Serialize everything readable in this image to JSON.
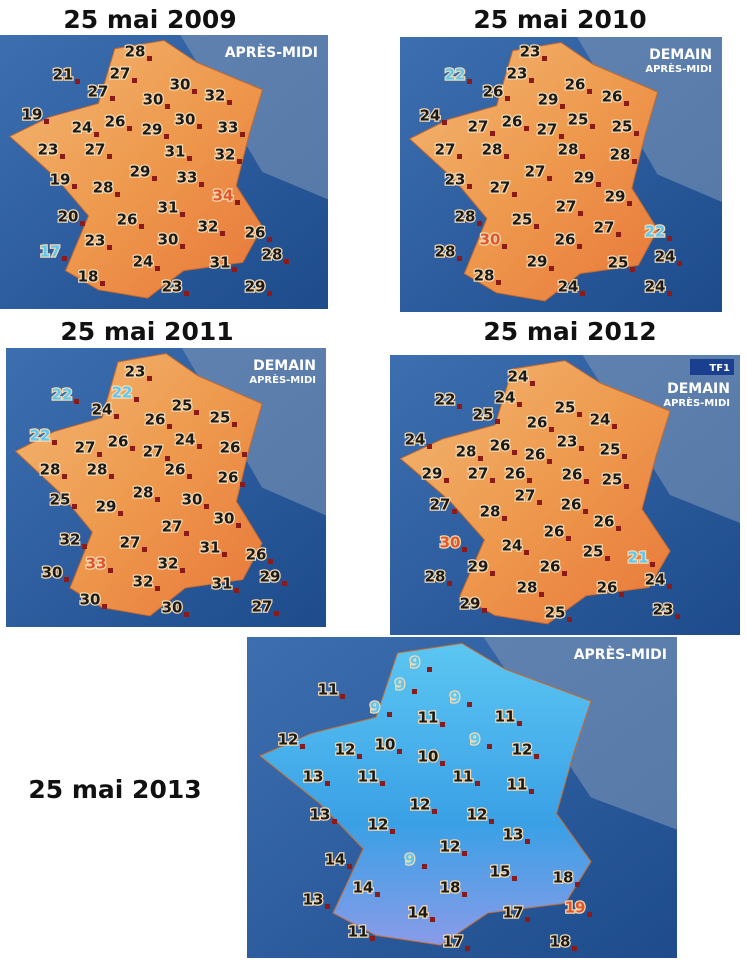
{
  "panels": [
    {
      "title": "25 mai 2009",
      "banner": [
        "APRÈS-MIDI"
      ],
      "temperatures": [
        28,
        21,
        27,
        27,
        30,
        32,
        30,
        19,
        24,
        26,
        29,
        30,
        33,
        23,
        27,
        31,
        32,
        29,
        33,
        19,
        28,
        34,
        31,
        20,
        26,
        32,
        26,
        17,
        23,
        30,
        28,
        18,
        24,
        31,
        23,
        29
      ]
    },
    {
      "title": "25 mai 2010",
      "banner": [
        "DEMAIN",
        "APRÈS-MIDI"
      ],
      "temperatures": [
        23,
        22,
        23,
        26,
        29,
        26,
        26,
        24,
        27,
        26,
        27,
        25,
        25,
        27,
        28,
        28,
        28,
        23,
        27,
        27,
        29,
        29,
        28,
        25,
        27,
        27,
        22,
        30,
        26,
        28,
        29,
        25,
        24,
        28,
        24,
        24
      ]
    },
    {
      "title": "25 mai 2011",
      "banner": [
        "DEMAIN",
        "APRÈS-MIDI"
      ],
      "temperatures": [
        23,
        22,
        22,
        24,
        26,
        25,
        25,
        22,
        27,
        26,
        27,
        24,
        26,
        28,
        28,
        26,
        26,
        25,
        29,
        28,
        30,
        30,
        32,
        27,
        27,
        31,
        26,
        33,
        32,
        30,
        32,
        31,
        29,
        30,
        30,
        27
      ]
    },
    {
      "title": "25 mai 2012",
      "logo": "TF1",
      "banner": [
        "DEMAIN",
        "APRÈS-MIDI"
      ],
      "temperatures": [
        24,
        22,
        24,
        25,
        26,
        25,
        24,
        24,
        28,
        26,
        26,
        23,
        25,
        29,
        27,
        26,
        26,
        25,
        27,
        28,
        27,
        26,
        26,
        30,
        24,
        26,
        25,
        21,
        29,
        26,
        28,
        28,
        26,
        24,
        29,
        25,
        23
      ]
    },
    {
      "title": "25 mai 2013",
      "banner": [
        "APRÈS-MIDI"
      ],
      "temperatures": [
        9,
        11,
        9,
        9,
        9,
        11,
        11,
        12,
        9,
        12,
        10,
        12,
        10,
        13,
        11,
        11,
        11,
        12,
        13,
        12,
        12,
        13,
        12,
        9,
        14,
        15,
        18,
        14,
        18,
        19,
        13,
        14,
        17,
        11,
        17,
        18
      ]
    }
  ]
}
